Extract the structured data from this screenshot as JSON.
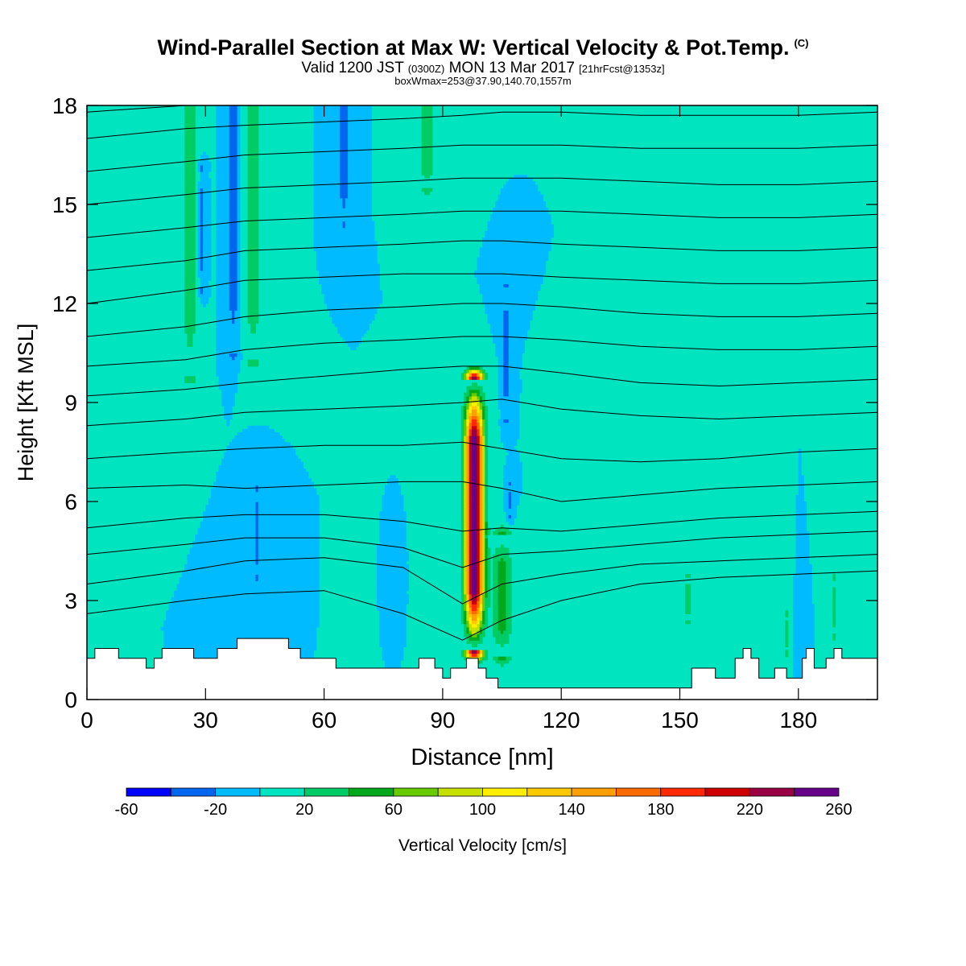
{
  "header": {
    "title": "Wind-Parallel Section at Max W: Vertical Velocity & Pot.Temp.",
    "copyright": "(C)",
    "valid_prefix": "Valid 1200 JST",
    "valid_utc": "(0300Z)",
    "valid_date": "MON 13 Mar 2017",
    "forecast": "[21hrFcst@1353z]",
    "boxmax": "boxWmax=253@37.90,140.70,1557m"
  },
  "chart_data": {
    "type": "heatmap",
    "xlabel": "Distance [nm]",
    "ylabel": "Height [Kft MSL]",
    "xlim": [
      0,
      200
    ],
    "ylim": [
      0,
      18
    ],
    "xticks": [
      0,
      30,
      60,
      90,
      120,
      150,
      180
    ],
    "yticks": [
      0,
      3,
      6,
      9,
      12,
      15,
      18
    ],
    "colorbar": {
      "label": "Vertical Velocity [cm/s]",
      "boundaries": [
        -60,
        -40,
        -20,
        0,
        20,
        40,
        60,
        80,
        100,
        120,
        140,
        160,
        180,
        200,
        220,
        240,
        260
      ],
      "tick_labels": [
        "-60",
        "-20",
        "20",
        "60",
        "100",
        "140",
        "180",
        "220",
        "260"
      ],
      "colors": [
        "#0000ff",
        "#0066ee",
        "#00bbff",
        "#00e5c0",
        "#00cc66",
        "#00a81c",
        "#66cc00",
        "#c8e000",
        "#ffee00",
        "#ffc800",
        "#ffa000",
        "#ff6a00",
        "#ff2a00",
        "#cc0000",
        "#990044",
        "#660088"
      ]
    },
    "background_w": 0,
    "w_features": [
      {
        "x": 98,
        "base": 1.5,
        "top": 9.7,
        "halfwidth": 2.2,
        "peak": 253
      },
      {
        "x": 105,
        "base": 1.3,
        "top": 5.0,
        "halfwidth": 2.5,
        "peak": 45
      },
      {
        "x": 26,
        "base": 9.8,
        "top": 18,
        "halfwidth": 1.6,
        "peak": 40
      },
      {
        "x": 42,
        "base": 10.3,
        "top": 18,
        "halfwidth": 1.8,
        "peak": 40
      },
      {
        "x": 86,
        "base": 15.5,
        "top": 18,
        "halfwidth": 1.8,
        "peak": 35
      },
      {
        "x": 37,
        "base": 10.5,
        "top": 18,
        "halfwidth": 1.1,
        "peak": -35
      },
      {
        "x": 29,
        "base": 12.5,
        "top": 16,
        "halfwidth": 0.7,
        "peak": -30
      },
      {
        "x": 65,
        "base": 14.5,
        "top": 18,
        "halfwidth": 0.9,
        "peak": -35
      },
      {
        "x": 106,
        "base": 8.5,
        "top": 12.5,
        "halfwidth": 0.7,
        "peak": -30
      },
      {
        "x": 43,
        "base": 3.8,
        "top": 6.3,
        "halfwidth": 0.9,
        "peak": -30
      },
      {
        "x": 107,
        "base": 5.6,
        "top": 6.5,
        "halfwidth": 0.6,
        "peak": -25
      },
      {
        "x": 78,
        "base": 3.2,
        "top": 4.2,
        "halfwidth": 0.4,
        "peak": -25
      },
      {
        "x": 180,
        "base": 1.4,
        "top": 2.3,
        "halfwidth": 0.5,
        "peak": -25
      },
      {
        "x": 152,
        "base": 2.4,
        "top": 3.7,
        "halfwidth": 0.7,
        "peak": 30
      },
      {
        "x": 189,
        "base": 2.0,
        "top": 3.6,
        "halfwidth": 0.7,
        "peak": 30
      },
      {
        "x": 177,
        "base": 1.5,
        "top": 2.5,
        "halfwidth": 0.6,
        "peak": 28
      }
    ],
    "terrain_kft": [
      [
        0,
        1.25
      ],
      [
        2,
        1.25
      ],
      [
        2,
        1.55
      ],
      [
        8,
        1.55
      ],
      [
        8,
        1.25
      ],
      [
        15,
        1.25
      ],
      [
        15,
        0.95
      ],
      [
        17,
        0.95
      ],
      [
        17,
        1.25
      ],
      [
        19,
        1.25
      ],
      [
        19,
        1.55
      ],
      [
        27,
        1.55
      ],
      [
        27,
        1.25
      ],
      [
        33,
        1.25
      ],
      [
        33,
        1.55
      ],
      [
        38,
        1.55
      ],
      [
        38,
        1.85
      ],
      [
        51,
        1.85
      ],
      [
        51,
        1.55
      ],
      [
        54,
        1.55
      ],
      [
        54,
        1.25
      ],
      [
        63,
        1.25
      ],
      [
        63,
        0.95
      ],
      [
        84,
        0.95
      ],
      [
        84,
        1.25
      ],
      [
        88,
        1.25
      ],
      [
        88,
        0.95
      ],
      [
        90,
        0.95
      ],
      [
        90,
        0.65
      ],
      [
        92,
        0.65
      ],
      [
        92,
        0.95
      ],
      [
        96,
        0.95
      ],
      [
        96,
        1.25
      ],
      [
        99,
        1.25
      ],
      [
        99,
        0.95
      ],
      [
        101,
        0.95
      ],
      [
        101,
        0.65
      ],
      [
        104,
        0.65
      ],
      [
        104,
        0.35
      ],
      [
        153,
        0.35
      ],
      [
        153,
        0.95
      ],
      [
        159,
        0.95
      ],
      [
        159,
        0.65
      ],
      [
        164,
        0.65
      ],
      [
        164,
        1.25
      ],
      [
        166,
        1.25
      ],
      [
        166,
        1.55
      ],
      [
        168,
        1.55
      ],
      [
        168,
        1.25
      ],
      [
        170,
        1.25
      ],
      [
        170,
        0.65
      ],
      [
        174,
        0.65
      ],
      [
        174,
        0.95
      ],
      [
        177,
        0.95
      ],
      [
        177,
        0.65
      ],
      [
        181,
        0.65
      ],
      [
        181,
        1.25
      ],
      [
        182,
        1.25
      ],
      [
        182,
        1.55
      ],
      [
        184,
        1.55
      ],
      [
        184,
        0.95
      ],
      [
        187,
        0.95
      ],
      [
        187,
        1.25
      ],
      [
        189,
        1.25
      ],
      [
        189,
        1.55
      ],
      [
        191,
        1.55
      ],
      [
        191,
        1.25
      ],
      [
        200,
        1.25
      ]
    ],
    "isentropes_kft": [
      {
        "x": [
          0,
          25,
          40,
          60,
          80,
          95,
          105,
          120,
          140,
          160,
          180,
          200
        ],
        "y": [
          2.6,
          3.0,
          3.2,
          3.3,
          2.6,
          1.8,
          2.4,
          3.0,
          3.5,
          3.7,
          3.8,
          3.9
        ]
      },
      {
        "x": [
          0,
          25,
          40,
          60,
          80,
          95,
          105,
          120,
          140,
          160,
          180,
          200
        ],
        "y": [
          3.5,
          3.9,
          4.2,
          4.3,
          4.0,
          2.9,
          3.5,
          3.8,
          4.1,
          4.2,
          4.3,
          4.4
        ]
      },
      {
        "x": [
          0,
          25,
          40,
          60,
          80,
          95,
          105,
          120,
          140,
          160,
          180,
          200
        ],
        "y": [
          4.4,
          4.7,
          4.9,
          4.9,
          4.6,
          4.0,
          4.4,
          4.5,
          4.7,
          4.9,
          5.0,
          5.1
        ]
      },
      {
        "x": [
          0,
          25,
          40,
          60,
          80,
          95,
          105,
          120,
          140,
          160,
          180,
          200
        ],
        "y": [
          5.2,
          5.5,
          5.6,
          5.6,
          5.4,
          5.1,
          5.2,
          5.1,
          5.3,
          5.5,
          5.6,
          5.7
        ]
      },
      {
        "x": [
          0,
          25,
          40,
          60,
          80,
          95,
          105,
          120,
          140,
          160,
          180,
          200
        ],
        "y": [
          6.4,
          6.5,
          6.4,
          6.5,
          6.6,
          6.6,
          6.4,
          6.0,
          6.2,
          6.4,
          6.5,
          6.6
        ]
      },
      {
        "x": [
          0,
          25,
          40,
          60,
          80,
          95,
          105,
          120,
          140,
          160,
          180,
          200
        ],
        "y": [
          7.3,
          7.5,
          7.6,
          7.7,
          7.7,
          7.8,
          7.6,
          7.3,
          7.2,
          7.3,
          7.5,
          7.6
        ]
      },
      {
        "x": [
          0,
          25,
          40,
          60,
          80,
          95,
          105,
          120,
          140,
          160,
          180,
          200
        ],
        "y": [
          8.3,
          8.5,
          8.7,
          8.8,
          8.9,
          9.0,
          9.1,
          8.8,
          8.6,
          8.5,
          8.6,
          8.7
        ]
      },
      {
        "x": [
          0,
          25,
          40,
          60,
          80,
          95,
          105,
          120,
          140,
          160,
          180,
          200
        ],
        "y": [
          9.2,
          9.4,
          9.6,
          9.8,
          10.0,
          10.1,
          10.1,
          9.9,
          9.6,
          9.5,
          9.6,
          9.7
        ]
      },
      {
        "x": [
          0,
          25,
          40,
          60,
          80,
          95,
          105,
          120,
          140,
          160,
          180,
          200
        ],
        "y": [
          10.1,
          10.3,
          10.6,
          10.8,
          10.9,
          11.0,
          11.0,
          10.9,
          10.7,
          10.6,
          10.6,
          10.7
        ]
      },
      {
        "x": [
          0,
          25,
          40,
          60,
          80,
          95,
          105,
          120,
          140,
          160,
          180,
          200
        ],
        "y": [
          11.0,
          11.3,
          11.6,
          11.8,
          11.9,
          12.0,
          12.0,
          11.9,
          11.7,
          11.6,
          11.6,
          11.7
        ]
      },
      {
        "x": [
          0,
          25,
          40,
          60,
          80,
          95,
          105,
          120,
          140,
          160,
          180,
          200
        ],
        "y": [
          12.0,
          12.4,
          12.7,
          12.8,
          12.9,
          12.9,
          12.9,
          12.8,
          12.7,
          12.6,
          12.6,
          12.7
        ]
      },
      {
        "x": [
          0,
          25,
          40,
          60,
          80,
          95,
          105,
          120,
          140,
          160,
          180,
          200
        ],
        "y": [
          13.0,
          13.3,
          13.6,
          13.7,
          13.8,
          13.9,
          13.9,
          13.8,
          13.7,
          13.6,
          13.6,
          13.7
        ]
      },
      {
        "x": [
          0,
          25,
          40,
          60,
          80,
          95,
          105,
          120,
          140,
          160,
          180,
          200
        ],
        "y": [
          14.0,
          14.3,
          14.5,
          14.6,
          14.7,
          14.8,
          14.8,
          14.8,
          14.7,
          14.6,
          14.6,
          14.7
        ]
      },
      {
        "x": [
          0,
          25,
          40,
          60,
          80,
          95,
          105,
          120,
          140,
          160,
          180,
          200
        ],
        "y": [
          15.0,
          15.3,
          15.5,
          15.6,
          15.7,
          15.8,
          15.8,
          15.8,
          15.7,
          15.6,
          15.6,
          15.7
        ]
      },
      {
        "x": [
          0,
          25,
          40,
          60,
          80,
          95,
          105,
          120,
          140,
          160,
          180,
          200
        ],
        "y": [
          16.0,
          16.3,
          16.5,
          16.6,
          16.7,
          16.8,
          16.8,
          16.8,
          16.7,
          16.7,
          16.7,
          16.8
        ]
      },
      {
        "x": [
          0,
          25,
          40,
          60,
          80,
          95,
          105,
          120,
          140,
          160,
          180,
          200
        ],
        "y": [
          17.0,
          17.3,
          17.4,
          17.5,
          17.6,
          17.7,
          17.8,
          17.8,
          17.7,
          17.7,
          17.7,
          17.8
        ]
      },
      {
        "x": [
          0,
          25,
          40,
          60,
          80,
          95,
          105,
          120,
          140,
          160,
          180,
          200
        ],
        "y": [
          17.8,
          18.0,
          18.0,
          18.0,
          18.0,
          18.0,
          18.0,
          18.0,
          18.0,
          18.0,
          18.0,
          18.0
        ]
      }
    ]
  }
}
